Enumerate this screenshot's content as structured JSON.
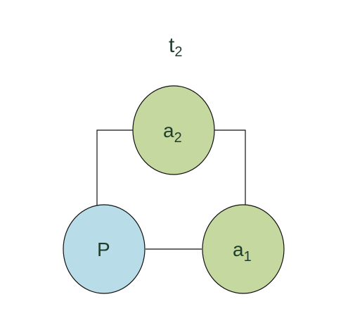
{
  "title": {
    "main": "t",
    "sub": "2"
  },
  "nodes": {
    "a2": {
      "main": "a",
      "sub": "2",
      "fill": "#c4d89f"
    },
    "p": {
      "main": "P",
      "fill": "#b9dde8"
    },
    "a1": {
      "main": "a",
      "sub": "1",
      "fill": "#c4d89f"
    }
  },
  "colors": {
    "stroke": "#111111",
    "text": "#1f3d2b"
  }
}
